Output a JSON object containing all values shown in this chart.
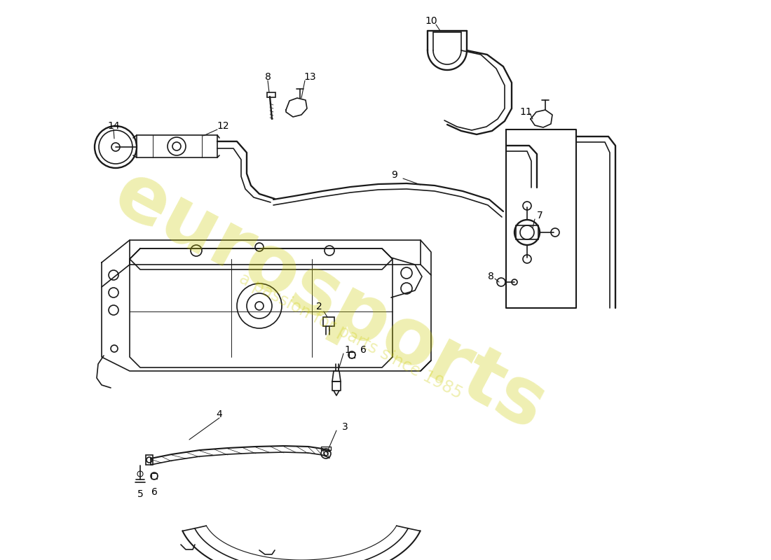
{
  "bg_color": "#ffffff",
  "line_color": "#1a1a1a",
  "lw": 1.2,
  "watermark1": "eurosports",
  "watermark2": "a passion for parts since 1985",
  "wm_color": "#cccc00",
  "wm_alpha": 0.3
}
